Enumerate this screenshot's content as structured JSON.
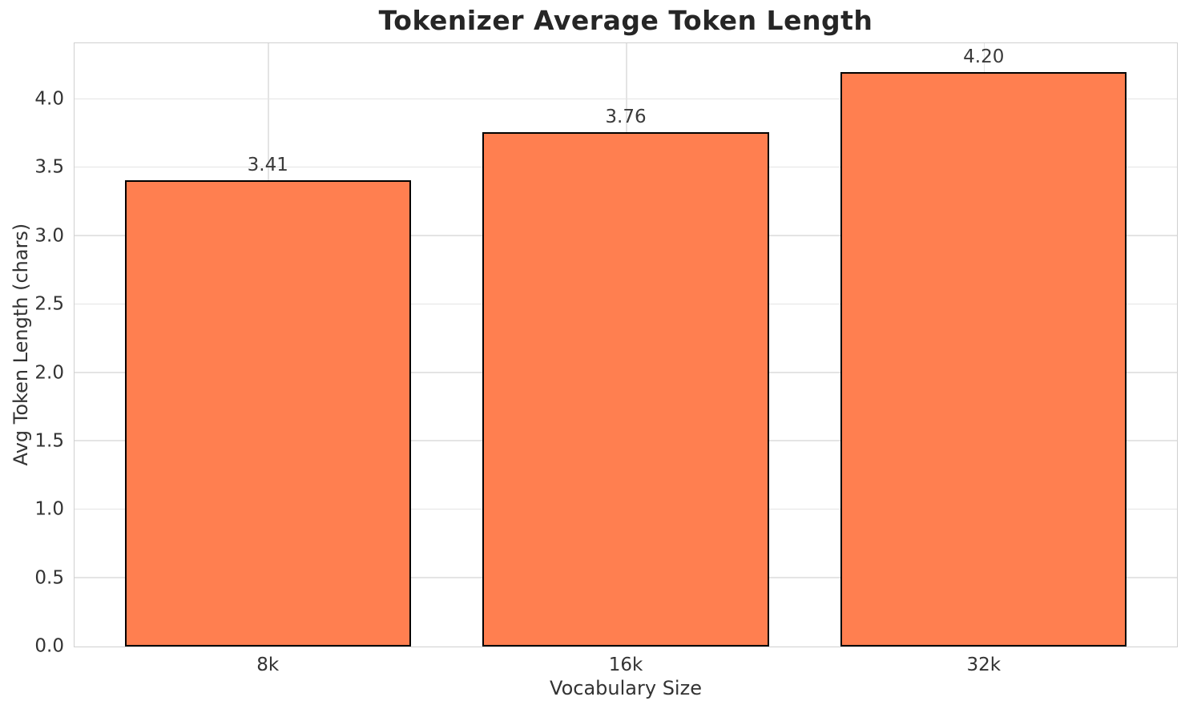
{
  "chart_data": {
    "type": "bar",
    "title": "Tokenizer Average Token Length",
    "xlabel": "Vocabulary Size",
    "ylabel": "Avg Token Length (chars)",
    "categories": [
      "8k",
      "16k",
      "32k"
    ],
    "values": [
      3.41,
      3.76,
      4.2
    ],
    "bar_labels": [
      "3.41",
      "3.76",
      "4.20"
    ],
    "yticks": [
      0.0,
      0.5,
      1.0,
      1.5,
      2.0,
      2.5,
      3.0,
      3.5,
      4.0
    ],
    "ytick_labels": [
      "0.0",
      "0.5",
      "1.0",
      "1.5",
      "2.0",
      "2.5",
      "3.0",
      "3.5",
      "4.0"
    ],
    "ylim": [
      0,
      4.41
    ],
    "xlim": [
      -0.54,
      2.54
    ],
    "bar_width": 0.8,
    "grid": true,
    "legend": "none",
    "colors": {
      "bar_fill": "#FF7F50",
      "bar_edge": "#000000",
      "grid": "#e4e4e4",
      "frame": "#d0d0d0",
      "tick_text": "#333333",
      "title_text": "#262626"
    }
  }
}
